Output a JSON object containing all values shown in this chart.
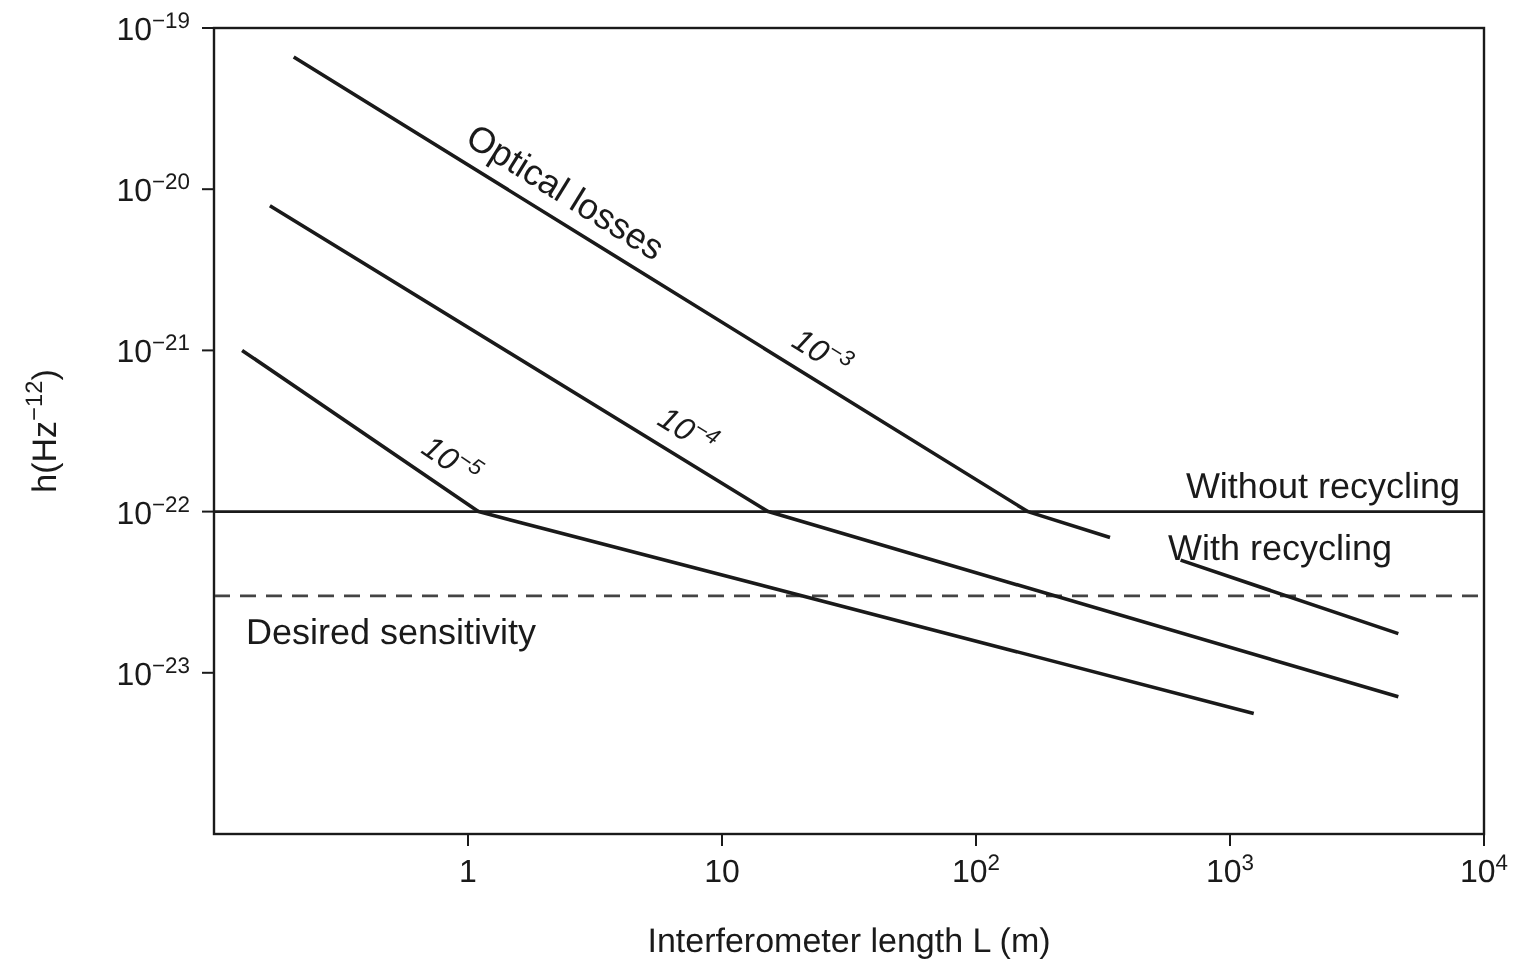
{
  "chart_data": {
    "type": "line",
    "xlabel": "Interferometer length L (m)",
    "ylabel": "h(Hz$^{−12}$)",
    "log": "xy",
    "xlim": [
      0.1,
      10000
    ],
    "ylim": [
      1e-24,
      1e-19
    ],
    "xticks": [
      {
        "value": 1,
        "label": "1"
      },
      {
        "value": 10,
        "label": "10"
      },
      {
        "value": 100,
        "label": "10$^{2}$"
      },
      {
        "value": 1000,
        "label": "10$^{3}$"
      },
      {
        "value": 10000,
        "label": "10$^{4}$"
      }
    ],
    "yticks": [
      {
        "value": 1e-19,
        "label": "10$^{−19}$"
      },
      {
        "value": 1e-20,
        "label": "10$^{−20}$"
      },
      {
        "value": 1e-21,
        "label": "10$^{−21}$"
      },
      {
        "value": 1e-22,
        "label": "10$^{−22}$"
      },
      {
        "value": 1e-23,
        "label": "10$^{−23}$"
      }
    ],
    "marker": "none",
    "line_style": "solid",
    "series": [
      {
        "name": "10$^{−3}$",
        "color": "#1a1a1a",
        "x": [
          0.206,
          160,
          337,
          450,
          639,
          4600
        ],
        "values": [
          6.6e-20,
          1e-22,
          6.9e-23,
          null,
          5e-23,
          1.75e-23
        ]
      },
      {
        "name": "10$^{−4}$",
        "color": "#1a1a1a",
        "x": [
          0.166,
          15.2,
          4600
        ],
        "values": [
          7.9e-21,
          1e-22,
          7.1e-24
        ]
      },
      {
        "name": "10$^{−5}$",
        "color": "#1a1a1a",
        "x": [
          0.129,
          1.1,
          1240
        ],
        "values": [
          1e-21,
          1e-22,
          5.6e-24
        ]
      }
    ],
    "ref_lines": [
      {
        "axis": "y",
        "value": 1e-22,
        "label": "Without recycling",
        "color": "#1a1a1a",
        "line_style": "solid"
      },
      {
        "axis": "y",
        "value": 3e-23,
        "label": "Desired sensitivity",
        "color": "#444444",
        "line_style": "dashed"
      }
    ],
    "annotations": [
      "Optical losses",
      "With recycling"
    ]
  }
}
